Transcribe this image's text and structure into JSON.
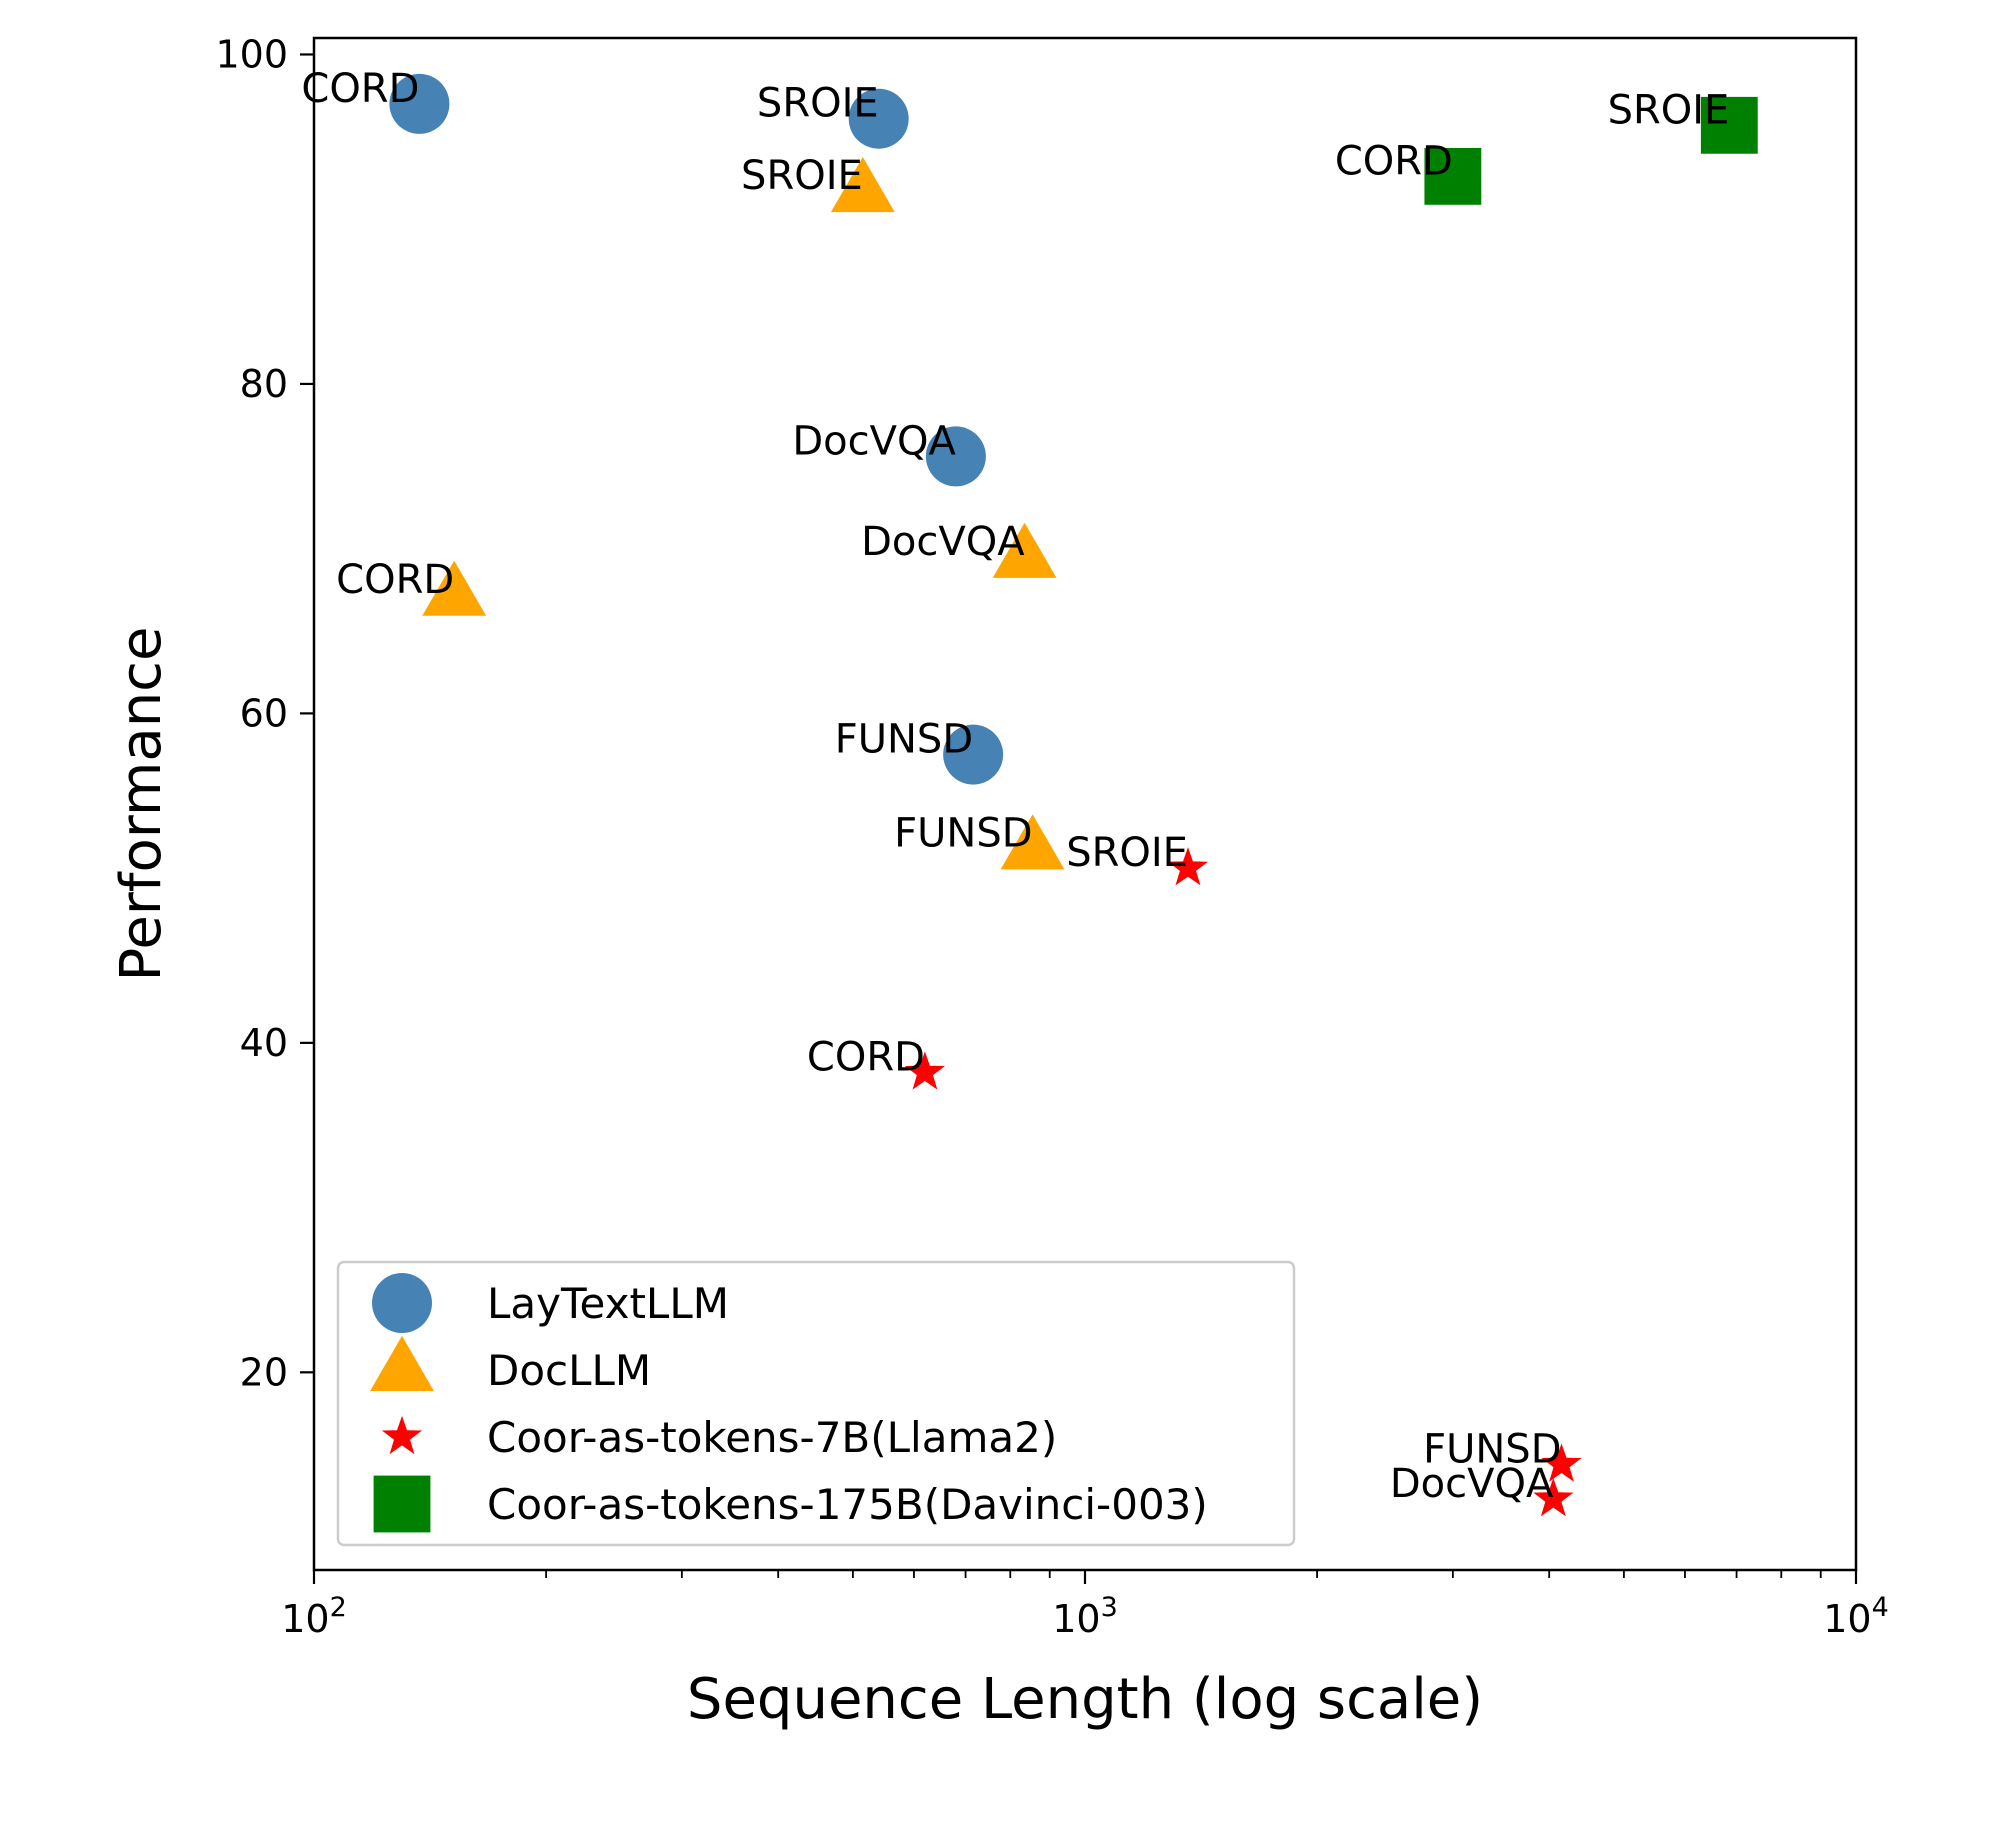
{
  "chart_data": {
    "type": "scatter",
    "title": "",
    "xlabel": "Sequence Length (log scale)",
    "ylabel": "Performance",
    "xscale": "log",
    "xlim": [
      100,
      10000
    ],
    "ylim": [
      8,
      101
    ],
    "x_ticks": [
      {
        "value": 100,
        "base": "10",
        "exp": "2"
      },
      {
        "value": 1000,
        "base": "10",
        "exp": "3"
      },
      {
        "value": 10000,
        "base": "10",
        "exp": "4"
      }
    ],
    "y_ticks": [
      20,
      40,
      60,
      80,
      100
    ],
    "grid": false,
    "legend_position": "lower-left",
    "series": [
      {
        "name": "LayTextLLM",
        "marker": "circle",
        "color": "#4682b4",
        "points": [
          {
            "label": "CORD",
            "x": 137,
            "y": 97.0
          },
          {
            "label": "SROIE",
            "x": 540,
            "y": 96.1
          },
          {
            "label": "DocVQA",
            "x": 680,
            "y": 75.6
          },
          {
            "label": "FUNSD",
            "x": 716,
            "y": 57.5
          }
        ]
      },
      {
        "name": "DocLLM",
        "marker": "triangle",
        "color": "#ffa500",
        "points": [
          {
            "label": "SROIE",
            "x": 515,
            "y": 91.7
          },
          {
            "label": "CORD",
            "x": 152,
            "y": 67.2
          },
          {
            "label": "DocVQA",
            "x": 835,
            "y": 69.5
          },
          {
            "label": "FUNSD",
            "x": 855,
            "y": 51.8
          }
        ]
      },
      {
        "name": "Coor-as-tokens-7B(Llama2)",
        "marker": "star",
        "color": "#ff0000",
        "points": [
          {
            "label": "SROIE",
            "x": 1360,
            "y": 50.6
          },
          {
            "label": "CORD",
            "x": 620,
            "y": 38.2
          },
          {
            "label": "FUNSD",
            "x": 4150,
            "y": 14.4
          },
          {
            "label": "DocVQA",
            "x": 4050,
            "y": 12.3
          }
        ]
      },
      {
        "name": "Coor-as-tokens-175B(Davinci-003)",
        "marker": "square",
        "color": "#008000",
        "points": [
          {
            "label": "SROIE",
            "x": 6850,
            "y": 95.7
          },
          {
            "label": "CORD",
            "x": 3000,
            "y": 92.6
          }
        ]
      }
    ]
  }
}
